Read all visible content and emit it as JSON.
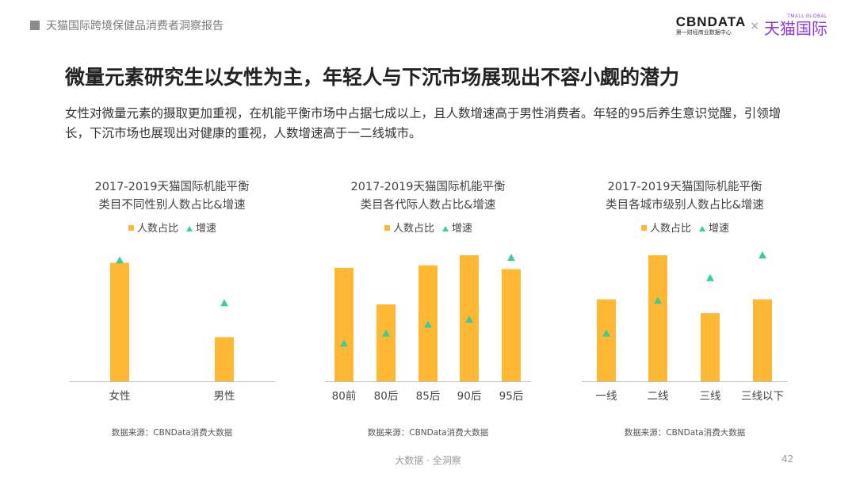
{
  "header": {
    "breadcrumb": "天猫国际跨境保健品消费者洞察报告",
    "cbn_logo": "CBNDATA",
    "cbn_sub": "第一财经商业数据中心",
    "times": "×",
    "tmall_global": "TMALL GLOBAL",
    "tmall_logo": "天猫国际"
  },
  "title": "微量元素研究生以女性为主，年轻人与下沉市场展现出不容小觑的潜力",
  "description": "女性对微量元素的摄取更加重视，在机能平衡市场中占据七成以上，且人数增速高于男性消费者。年轻的95后养生意识觉醒，引领增长，下沉市场也展现出对健康的重视，人数增速高于一二线城市。",
  "colors": {
    "bar": "#ffb833",
    "triangle": "#3ccba0",
    "axis": "#bfbfbf"
  },
  "chart_data": [
    {
      "type": "bar",
      "title_line1": "2017-2019天猫国际机能平衡",
      "title_line2": "类目不同性别人数占比&增速",
      "legend": [
        "人数占比",
        "增速"
      ],
      "categories": [
        "女性",
        "男性"
      ],
      "bar_values": [
        0.94,
        0.35
      ],
      "growth_values": [
        0.96,
        0.62
      ],
      "ylim": [
        0,
        1
      ],
      "source": "数据来源：CBNData消费大数据"
    },
    {
      "type": "bar",
      "title_line1": "2017-2019天猫国际机能平衡",
      "title_line2": "类目各代际人数占比&增速",
      "legend": [
        "人数占比",
        "增速"
      ],
      "categories": [
        "80前",
        "80后",
        "85后",
        "90后",
        "95后"
      ],
      "bar_values": [
        0.9,
        0.61,
        0.92,
        1.0,
        0.89
      ],
      "growth_values": [
        0.3,
        0.38,
        0.45,
        0.49,
        0.98
      ],
      "ylim": [
        0,
        1
      ],
      "source": "数据来源：CBNData消费大数据"
    },
    {
      "type": "bar",
      "title_line1": "2017-2019天猫国际机能平衡",
      "title_line2": "类目各城市级别人数占比&增速",
      "legend": [
        "人数占比",
        "增速"
      ],
      "categories": [
        "一线",
        "二线",
        "三线",
        "三线以下"
      ],
      "bar_values": [
        0.65,
        1.0,
        0.54,
        0.65
      ],
      "growth_values": [
        0.38,
        0.64,
        0.82,
        1.0
      ],
      "ylim": [
        0,
        1
      ],
      "source": "数据来源：CBNData消费大数据"
    }
  ],
  "footer": {
    "text": "大数据 · 全洞察",
    "page_number": "42"
  }
}
